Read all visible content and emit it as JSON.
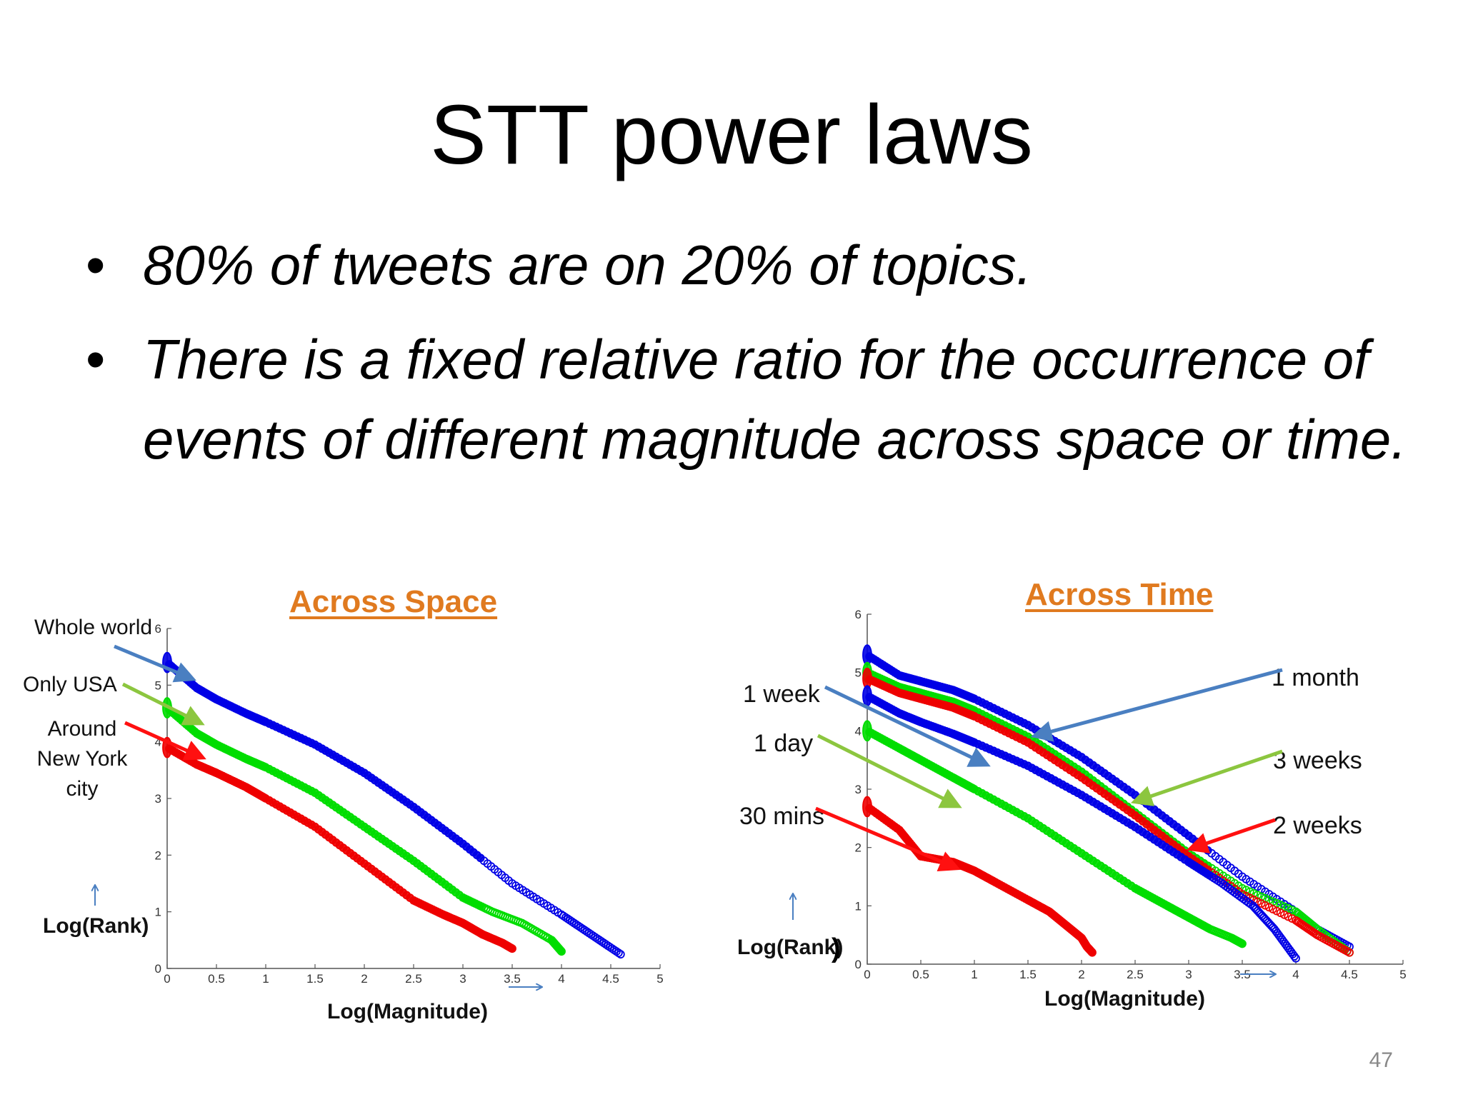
{
  "slide": {
    "title": "STT power laws",
    "bullets": [
      "80% of tweets are on 20% of topics.",
      "There is a fixed relative ratio for the occurrence of events of different magnitude across space or time."
    ],
    "page_number": "47"
  },
  "chart_data": [
    {
      "type": "scatter",
      "title": "Across Space",
      "xlabel": "Log(Magnitude)",
      "ylabel": "Log(Rank)",
      "xlim": [
        0,
        5
      ],
      "ylim": [
        0,
        6
      ],
      "xticks": [
        0,
        0.5,
        1,
        1.5,
        2,
        2.5,
        3,
        3.5,
        4,
        4.5,
        5
      ],
      "xtick_labels": [
        "0",
        "0.5",
        "1",
        "1.5",
        "2",
        "2.5",
        "3",
        "3.5",
        "4",
        "4.5",
        "5"
      ],
      "yticks": [
        0,
        1,
        2,
        3,
        4,
        5,
        6
      ],
      "ytick_labels": [
        "0",
        "1",
        "2",
        "3",
        "4",
        "5",
        "6"
      ],
      "annotation_labels": [
        "Whole world",
        "Only USA",
        "Around New York city"
      ],
      "series": [
        {
          "color": "#0000e6",
          "x": [
            0,
            0.3,
            0.5,
            0.8,
            1,
            1.5,
            2,
            2.5,
            3,
            3.5,
            4,
            4.3,
            4.6
          ],
          "y": [
            5.4,
            4.95,
            4.75,
            4.5,
            4.35,
            3.95,
            3.45,
            2.85,
            2.2,
            1.5,
            0.95,
            0.6,
            0.25
          ]
        },
        {
          "color": "#00dd00",
          "x": [
            0,
            0.3,
            0.5,
            0.8,
            1,
            1.5,
            2,
            2.5,
            3,
            3.3,
            3.6,
            3.9,
            4
          ],
          "y": [
            4.6,
            4.15,
            3.95,
            3.7,
            3.55,
            3.1,
            2.5,
            1.9,
            1.25,
            1,
            0.8,
            0.5,
            0.3
          ]
        },
        {
          "color": "#ee0000",
          "x": [
            0,
            0.3,
            0.5,
            0.8,
            1,
            1.5,
            2,
            2.5,
            2.8,
            3,
            3.2,
            3.4,
            3.5
          ],
          "y": [
            3.9,
            3.6,
            3.45,
            3.2,
            3.0,
            2.5,
            1.85,
            1.2,
            0.95,
            0.8,
            0.6,
            0.45,
            0.35
          ]
        }
      ]
    },
    {
      "type": "scatter",
      "title": "Across Time",
      "xlabel": "Log(Magnitude)",
      "ylabel": "Log(Rank)",
      "xlim": [
        0,
        5
      ],
      "ylim": [
        0,
        6
      ],
      "xticks": [
        0,
        0.5,
        1,
        1.5,
        2,
        2.5,
        3,
        3.5,
        4,
        4.5,
        5
      ],
      "xtick_labels": [
        "0",
        "0.5",
        "1",
        "1.5",
        "2",
        "2.5",
        "3",
        "3.5",
        "4",
        "4.5",
        "5"
      ],
      "yticks": [
        0,
        1,
        2,
        3,
        4,
        5,
        6
      ],
      "ytick_labels": [
        "0",
        "1",
        "2",
        "3",
        "4",
        "5",
        "6"
      ],
      "annotation_labels": [
        "1 month",
        "1 week",
        "1 day",
        "3 weeks",
        "30 mins",
        "2 weeks"
      ],
      "series": [
        {
          "color": "#0000e6",
          "x": [
            0,
            0.3,
            0.5,
            0.8,
            1,
            1.5,
            2,
            2.5,
            3,
            3.5,
            4,
            4.2,
            4.5
          ],
          "y": [
            5.3,
            4.95,
            4.85,
            4.7,
            4.55,
            4.1,
            3.55,
            2.9,
            2.2,
            1.5,
            0.9,
            0.6,
            0.3
          ]
        },
        {
          "color": "#00dd00",
          "x": [
            0,
            0.3,
            0.5,
            0.8,
            1,
            1.5,
            2,
            2.5,
            3,
            3.5,
            4,
            4.2,
            4.5
          ],
          "y": [
            5.0,
            4.75,
            4.65,
            4.5,
            4.35,
            3.9,
            3.3,
            2.6,
            1.9,
            1.3,
            0.9,
            0.6,
            0.2
          ]
        },
        {
          "color": "#ee0000",
          "x": [
            0,
            0.3,
            0.5,
            0.8,
            1,
            1.5,
            2,
            2.5,
            3,
            3.5,
            4,
            4.2,
            4.5
          ],
          "y": [
            4.9,
            4.65,
            4.55,
            4.4,
            4.25,
            3.8,
            3.2,
            2.55,
            1.85,
            1.2,
            0.75,
            0.5,
            0.2
          ]
        },
        {
          "color": "#0000e6",
          "x": [
            0,
            0.3,
            0.5,
            0.8,
            1,
            1.5,
            2,
            2.5,
            3,
            3.3,
            3.6,
            3.8,
            4
          ],
          "y": [
            4.6,
            4.3,
            4.15,
            3.95,
            3.8,
            3.4,
            2.9,
            2.35,
            1.75,
            1.4,
            1.0,
            0.6,
            0.1
          ]
        },
        {
          "color": "#00dd00",
          "x": [
            0,
            0.3,
            0.5,
            0.8,
            1,
            1.5,
            2,
            2.5,
            2.8,
            3,
            3.2,
            3.4,
            3.5
          ],
          "y": [
            4.0,
            3.7,
            3.5,
            3.2,
            3.0,
            2.5,
            1.9,
            1.3,
            1.0,
            0.8,
            0.6,
            0.45,
            0.35
          ]
        },
        {
          "color": "#ee0000",
          "x": [
            0,
            0.3,
            0.5,
            0.8,
            1,
            1.2,
            1.5,
            1.7,
            1.8,
            1.9,
            2,
            2.05,
            2.1
          ],
          "y": [
            2.7,
            2.3,
            1.85,
            1.75,
            1.6,
            1.4,
            1.1,
            0.9,
            0.75,
            0.6,
            0.45,
            0.3,
            0.2
          ]
        }
      ]
    }
  ]
}
